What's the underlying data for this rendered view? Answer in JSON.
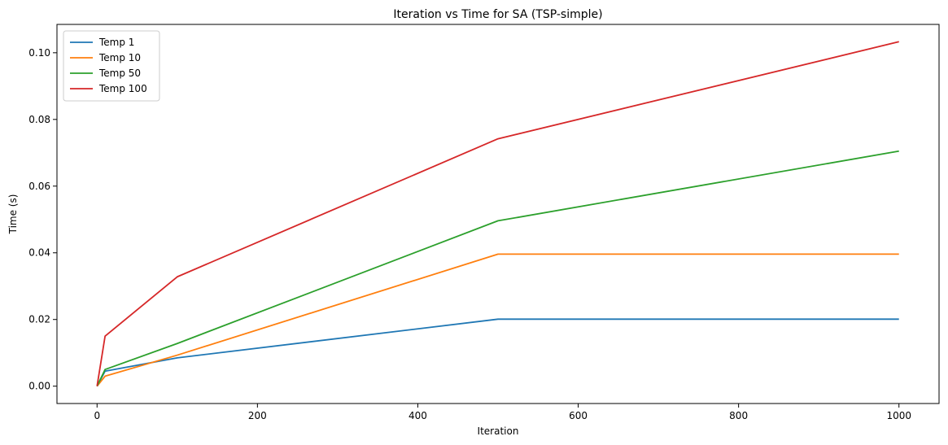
{
  "chart_data": {
    "type": "line",
    "title": "Iteration vs Time for SA (TSP-simple)",
    "xlabel": "Iteration",
    "ylabel": "Time (s)",
    "xlim": [
      -50,
      1050
    ],
    "ylim": [
      -0.0052,
      0.1085
    ],
    "xticks": [
      0,
      200,
      400,
      600,
      800,
      1000
    ],
    "xtick_labels": [
      "0",
      "200",
      "400",
      "600",
      "800",
      "1000"
    ],
    "yticks": [
      0.0,
      0.02,
      0.04,
      0.06,
      0.08,
      0.1
    ],
    "ytick_labels": [
      "0.00",
      "0.02",
      "0.04",
      "0.06",
      "0.08",
      "0.10"
    ],
    "grid": false,
    "legend_position": "top-left",
    "x": [
      0,
      10,
      100,
      500,
      1000
    ],
    "series": [
      {
        "name": "Temp 1",
        "color": "#1f77b4",
        "values": [
          0.0,
          0.0045,
          0.0085,
          0.0201,
          0.0201
        ]
      },
      {
        "name": "Temp 10",
        "color": "#ff7f0e",
        "values": [
          0.0,
          0.003,
          0.0093,
          0.0396,
          0.0396
        ]
      },
      {
        "name": "Temp 50",
        "color": "#2ca02c",
        "values": [
          0.0,
          0.005,
          0.0128,
          0.0496,
          0.0705
        ]
      },
      {
        "name": "Temp 100",
        "color": "#d62728",
        "values": [
          0.0,
          0.015,
          0.0328,
          0.0742,
          0.1033
        ]
      }
    ]
  }
}
